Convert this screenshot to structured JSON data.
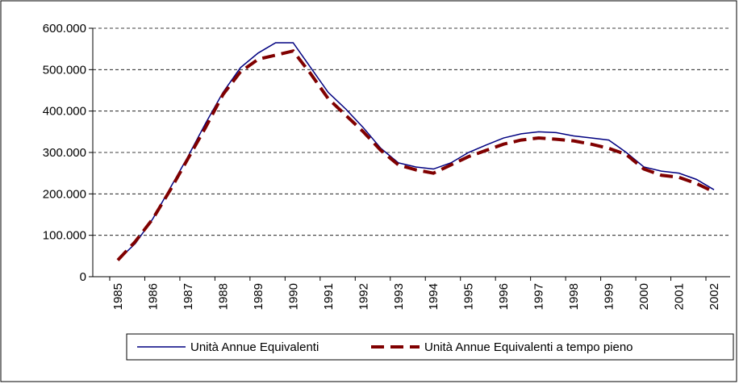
{
  "chart_data": {
    "type": "line",
    "categories": [
      "1985",
      null,
      "1986",
      null,
      "1987",
      null,
      "1988",
      null,
      "1989",
      null,
      "1990",
      null,
      "1991",
      null,
      "1992",
      null,
      "1993",
      null,
      "1994",
      null,
      "1995",
      null,
      "1996",
      null,
      "1997",
      null,
      "1998",
      null,
      "1999",
      null,
      "2000",
      null,
      "2001",
      null,
      "2002"
    ],
    "series": [
      {
        "name": "Unità Annue Equivalenti",
        "color": "#000080",
        "style": "solid",
        "values": [
          40000,
          80000,
          140000,
          215000,
          290000,
          370000,
          445000,
          505000,
          540000,
          565000,
          565000,
          505000,
          445000,
          405000,
          360000,
          310000,
          275000,
          265000,
          260000,
          275000,
          300000,
          318000,
          335000,
          345000,
          350000,
          348000,
          340000,
          335000,
          330000,
          300000,
          265000,
          255000,
          250000,
          235000,
          210000
        ]
      },
      {
        "name": "Unità Annue Equivalenti a tempo pieno",
        "color": "#800000",
        "style": "dashed",
        "values": [
          40000,
          85000,
          140000,
          210000,
          285000,
          360000,
          440000,
          495000,
          525000,
          535000,
          545000,
          490000,
          430000,
          390000,
          350000,
          305000,
          270000,
          258000,
          250000,
          270000,
          290000,
          305000,
          320000,
          330000,
          335000,
          332000,
          328000,
          320000,
          310000,
          295000,
          260000,
          245000,
          240000,
          225000,
          205000
        ]
      }
    ],
    "ylim": [
      0,
      600000
    ],
    "yticks": [
      0,
      {
        "value": 100000,
        "label": "100.000"
      },
      {
        "value": 200000,
        "label": "200.000"
      },
      {
        "value": 300000,
        "label": "300.000"
      },
      {
        "value": 400000,
        "label": "400.000"
      },
      {
        "value": 500000,
        "label": "500.000"
      },
      {
        "value": 600000,
        "label": "600.000"
      }
    ],
    "grid": true,
    "legend": "bottom"
  }
}
